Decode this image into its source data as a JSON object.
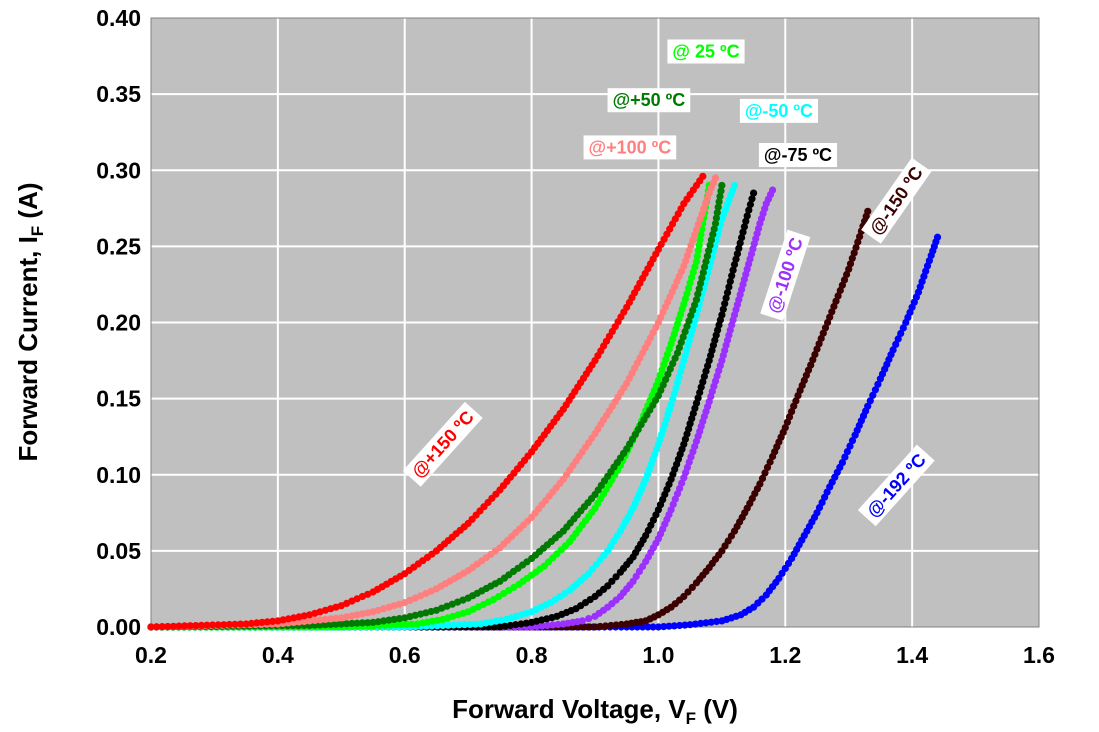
{
  "chart_data": {
    "type": "scatter",
    "xlabel": {
      "main": "Forward Voltage, V",
      "sub": "F",
      "unit": " (V)"
    },
    "ylabel": {
      "main": "Forward Current, I",
      "sub": "F",
      "unit": " (A)"
    },
    "xlim": [
      0.2,
      1.6
    ],
    "ylim": [
      0.0,
      0.4
    ],
    "x_ticks": [
      0.2,
      0.4,
      0.6,
      0.8,
      1.0,
      1.2,
      1.4,
      1.6
    ],
    "x_tick_labels": [
      "0.2",
      "0.4",
      "0.6",
      "0.8",
      "1.0",
      "1.2",
      "1.4",
      "1.6"
    ],
    "y_ticks": [
      0.0,
      0.05,
      0.1,
      0.15,
      0.2,
      0.25,
      0.3,
      0.35,
      0.4
    ],
    "y_tick_labels": [
      "0.00",
      "0.05",
      "0.10",
      "0.15",
      "0.20",
      "0.25",
      "0.30",
      "0.35",
      "0.40"
    ],
    "grid": true,
    "plot_background": "#c0c0c0",
    "grid_color": "#ffffff",
    "marker": "filled-circle-with-connecting-line",
    "series": [
      {
        "id": "m192",
        "name": "@-192 ºC",
        "color": "#0000ff",
        "x": [
          0.2,
          0.6,
          0.95,
          1.0,
          1.05,
          1.1,
          1.13,
          1.15,
          1.17,
          1.19,
          1.21,
          1.23,
          1.25,
          1.27,
          1.29,
          1.31,
          1.33,
          1.35,
          1.37,
          1.39,
          1.41,
          1.43,
          1.44
        ],
        "y": [
          0.0,
          0.0,
          0.0,
          0.0,
          0.0015,
          0.004,
          0.008,
          0.013,
          0.021,
          0.032,
          0.045,
          0.06,
          0.075,
          0.092,
          0.108,
          0.126,
          0.145,
          0.163,
          0.182,
          0.2,
          0.22,
          0.244,
          0.256
        ]
      },
      {
        "id": "m150",
        "name": "@-150 ºC",
        "color": "#3b0000",
        "x": [
          0.2,
          0.6,
          0.9,
          0.95,
          0.98,
          1.0,
          1.02,
          1.04,
          1.06,
          1.08,
          1.1,
          1.12,
          1.14,
          1.16,
          1.18,
          1.2,
          1.22,
          1.24,
          1.26,
          1.28,
          1.3,
          1.32,
          1.33
        ],
        "y": [
          0.0,
          0.0,
          0.0,
          0.002,
          0.004,
          0.008,
          0.013,
          0.02,
          0.029,
          0.039,
          0.05,
          0.063,
          0.078,
          0.094,
          0.112,
          0.131,
          0.152,
          0.172,
          0.193,
          0.214,
          0.235,
          0.26,
          0.273
        ]
      },
      {
        "id": "m100",
        "name": "@-100 ºC",
        "color": "#9b30ff",
        "x": [
          0.2,
          0.6,
          0.8,
          0.85,
          0.88,
          0.9,
          0.92,
          0.94,
          0.96,
          0.98,
          1.0,
          1.02,
          1.04,
          1.06,
          1.08,
          1.1,
          1.12,
          1.14,
          1.16,
          1.17,
          1.18
        ],
        "y": [
          0.0,
          0.0,
          0.0,
          0.002,
          0.004,
          0.007,
          0.013,
          0.02,
          0.03,
          0.043,
          0.058,
          0.077,
          0.098,
          0.122,
          0.148,
          0.175,
          0.205,
          0.235,
          0.265,
          0.278,
          0.287
        ]
      },
      {
        "id": "m75",
        "name": "@-75 ºC",
        "color": "#000000",
        "x": [
          0.2,
          0.6,
          0.75,
          0.8,
          0.84,
          0.87,
          0.9,
          0.92,
          0.94,
          0.96,
          0.98,
          1.0,
          1.02,
          1.04,
          1.06,
          1.08,
          1.1,
          1.12,
          1.14,
          1.15
        ],
        "y": [
          0.0,
          0.0,
          0.0,
          0.003,
          0.007,
          0.012,
          0.02,
          0.027,
          0.036,
          0.046,
          0.06,
          0.077,
          0.097,
          0.12,
          0.147,
          0.175,
          0.205,
          0.238,
          0.27,
          0.285
        ]
      },
      {
        "id": "m50",
        "name": "@-50 ºC",
        "color": "#00ffff",
        "x": [
          0.2,
          0.6,
          0.72,
          0.76,
          0.8,
          0.83,
          0.86,
          0.89,
          0.92,
          0.94,
          0.96,
          0.98,
          1.0,
          1.02,
          1.04,
          1.06,
          1.08,
          1.1,
          1.12
        ],
        "y": [
          0.0,
          0.0,
          0.002,
          0.005,
          0.01,
          0.016,
          0.024,
          0.035,
          0.05,
          0.063,
          0.078,
          0.097,
          0.12,
          0.146,
          0.175,
          0.205,
          0.236,
          0.268,
          0.29
        ]
      },
      {
        "id": "p25",
        "name": "@ 25 ºC",
        "color": "#00ff00",
        "x": [
          0.2,
          0.5,
          0.62,
          0.66,
          0.7,
          0.74,
          0.78,
          0.82,
          0.86,
          0.9,
          0.94,
          0.97,
          1.0,
          1.02,
          1.04,
          1.06,
          1.08
        ],
        "y": [
          0.0,
          0.0,
          0.002,
          0.005,
          0.01,
          0.018,
          0.028,
          0.04,
          0.056,
          0.078,
          0.106,
          0.132,
          0.162,
          0.186,
          0.212,
          0.24,
          0.29
        ]
      },
      {
        "id": "p50",
        "name": "@+50 ºC",
        "color": "#007a00",
        "x": [
          0.2,
          0.45,
          0.55,
          0.6,
          0.65,
          0.7,
          0.75,
          0.8,
          0.85,
          0.9,
          0.95,
          1.0,
          1.03,
          1.06,
          1.09,
          1.1
        ],
        "y": [
          0.0,
          0.001,
          0.003,
          0.006,
          0.011,
          0.019,
          0.03,
          0.045,
          0.063,
          0.087,
          0.117,
          0.152,
          0.18,
          0.215,
          0.265,
          0.29
        ]
      },
      {
        "id": "p100",
        "name": "@+100 ºC",
        "color": "#ff7f7f",
        "x": [
          0.2,
          0.4,
          0.5,
          0.55,
          0.6,
          0.65,
          0.7,
          0.75,
          0.8,
          0.85,
          0.9,
          0.95,
          1.0,
          1.04,
          1.08,
          1.09
        ],
        "y": [
          0.0,
          0.002,
          0.006,
          0.01,
          0.016,
          0.025,
          0.037,
          0.052,
          0.072,
          0.097,
          0.127,
          0.16,
          0.2,
          0.237,
          0.285,
          0.295
        ]
      },
      {
        "id": "p150",
        "name": "@+150 ºC",
        "color": "#ff0000",
        "x": [
          0.2,
          0.35,
          0.4,
          0.45,
          0.5,
          0.55,
          0.6,
          0.65,
          0.7,
          0.75,
          0.8,
          0.85,
          0.9,
          0.95,
          1.0,
          1.04,
          1.07
        ],
        "y": [
          0.0,
          0.002,
          0.004,
          0.008,
          0.014,
          0.023,
          0.035,
          0.05,
          0.068,
          0.09,
          0.115,
          0.143,
          0.175,
          0.21,
          0.248,
          0.278,
          0.296
        ]
      }
    ],
    "annotations": [
      {
        "series": "p25",
        "text": "@ 25 ºC",
        "at": [
          1.075,
          0.378
        ],
        "rotate": 0
      },
      {
        "series": "p50",
        "text": "@+50 ºC",
        "at": [
          0.985,
          0.346
        ],
        "rotate": 0
      },
      {
        "series": "p100",
        "text": "@+100 ºC",
        "at": [
          0.955,
          0.315
        ],
        "rotate": 0
      },
      {
        "series": "m50",
        "text": "@-50 ºC",
        "at": [
          1.19,
          0.339
        ],
        "rotate": 0
      },
      {
        "series": "m75",
        "text": "@-75 ºC",
        "at": [
          1.22,
          0.31
        ],
        "rotate": 0
      },
      {
        "series": "m150",
        "text": "@-150 ºC",
        "at": [
          1.375,
          0.28
        ],
        "rotate": -55
      },
      {
        "series": "m100",
        "text": "@-100 ºC",
        "at": [
          1.2,
          0.231
        ],
        "rotate": -72
      },
      {
        "series": "p150",
        "text": "@+150 ºC",
        "at": [
          0.66,
          0.12
        ],
        "rotate": -48
      },
      {
        "series": "m192",
        "text": "@-192 ºC",
        "at": [
          1.375,
          0.093
        ],
        "rotate": -48
      }
    ]
  }
}
